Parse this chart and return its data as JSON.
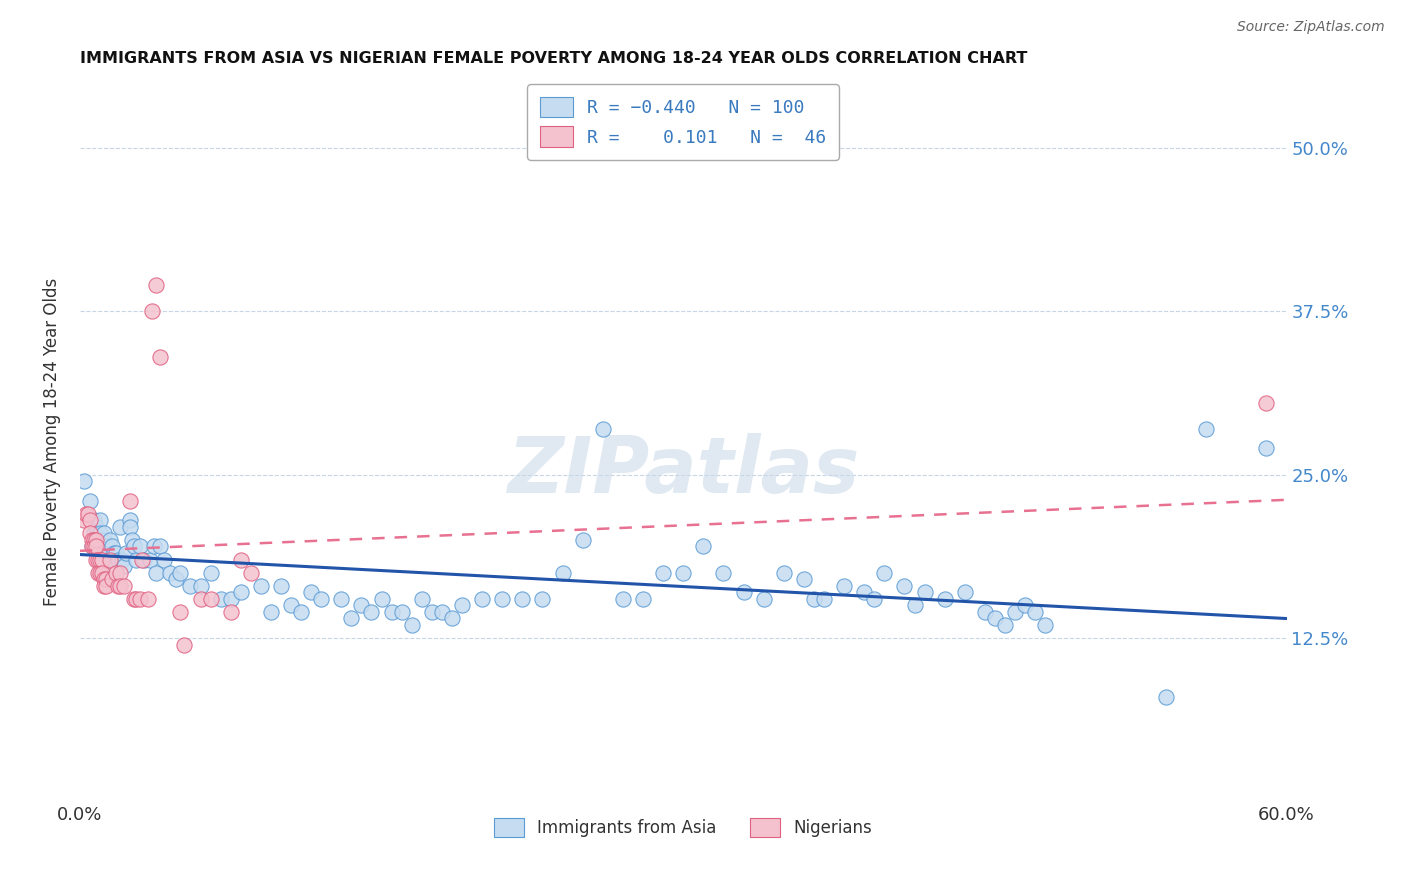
{
  "title": "IMMIGRANTS FROM ASIA VS NIGERIAN FEMALE POVERTY AMONG 18-24 YEAR OLDS CORRELATION CHART",
  "source": "Source: ZipAtlas.com",
  "ylabel": "Female Poverty Among 18-24 Year Olds",
  "xlim": [
    0.0,
    0.6
  ],
  "ylim": [
    0.0,
    0.55
  ],
  "yticks": [
    0.125,
    0.25,
    0.375,
    0.5
  ],
  "ytick_labels": [
    "12.5%",
    "25.0%",
    "37.5%",
    "50.0%"
  ],
  "xticks": [
    0.0,
    0.1,
    0.2,
    0.3,
    0.4,
    0.5,
    0.6
  ],
  "watermark": "ZIPatlas",
  "asia_color": "#c6dcf0",
  "asia_edge": "#5b9bd5",
  "nigeria_color": "#f4c2cf",
  "nigeria_edge": "#e06080",
  "asia_line_color": "#2255aa",
  "nigeria_line_color": "#e87090",
  "asia_R": -0.44,
  "nigeria_R": 0.101,
  "asia_points": [
    [
      0.002,
      0.245
    ],
    [
      0.005,
      0.23
    ],
    [
      0.006,
      0.195
    ],
    [
      0.007,
      0.215
    ],
    [
      0.007,
      0.205
    ],
    [
      0.008,
      0.21
    ],
    [
      0.008,
      0.2
    ],
    [
      0.009,
      0.195
    ],
    [
      0.01,
      0.215
    ],
    [
      0.01,
      0.205
    ],
    [
      0.011,
      0.2
    ],
    [
      0.011,
      0.185
    ],
    [
      0.012,
      0.205
    ],
    [
      0.013,
      0.195
    ],
    [
      0.014,
      0.185
    ],
    [
      0.015,
      0.2
    ],
    [
      0.016,
      0.195
    ],
    [
      0.017,
      0.19
    ],
    [
      0.018,
      0.19
    ],
    [
      0.019,
      0.185
    ],
    [
      0.02,
      0.21
    ],
    [
      0.021,
      0.185
    ],
    [
      0.022,
      0.18
    ],
    [
      0.023,
      0.19
    ],
    [
      0.025,
      0.215
    ],
    [
      0.025,
      0.21
    ],
    [
      0.026,
      0.2
    ],
    [
      0.027,
      0.195
    ],
    [
      0.028,
      0.185
    ],
    [
      0.03,
      0.195
    ],
    [
      0.032,
      0.185
    ],
    [
      0.035,
      0.185
    ],
    [
      0.037,
      0.195
    ],
    [
      0.038,
      0.175
    ],
    [
      0.04,
      0.195
    ],
    [
      0.042,
      0.185
    ],
    [
      0.045,
      0.175
    ],
    [
      0.048,
      0.17
    ],
    [
      0.05,
      0.175
    ],
    [
      0.055,
      0.165
    ],
    [
      0.06,
      0.165
    ],
    [
      0.065,
      0.175
    ],
    [
      0.07,
      0.155
    ],
    [
      0.075,
      0.155
    ],
    [
      0.08,
      0.16
    ],
    [
      0.09,
      0.165
    ],
    [
      0.095,
      0.145
    ],
    [
      0.1,
      0.165
    ],
    [
      0.105,
      0.15
    ],
    [
      0.11,
      0.145
    ],
    [
      0.115,
      0.16
    ],
    [
      0.12,
      0.155
    ],
    [
      0.13,
      0.155
    ],
    [
      0.135,
      0.14
    ],
    [
      0.14,
      0.15
    ],
    [
      0.145,
      0.145
    ],
    [
      0.15,
      0.155
    ],
    [
      0.155,
      0.145
    ],
    [
      0.16,
      0.145
    ],
    [
      0.165,
      0.135
    ],
    [
      0.17,
      0.155
    ],
    [
      0.175,
      0.145
    ],
    [
      0.18,
      0.145
    ],
    [
      0.185,
      0.14
    ],
    [
      0.19,
      0.15
    ],
    [
      0.2,
      0.155
    ],
    [
      0.21,
      0.155
    ],
    [
      0.22,
      0.155
    ],
    [
      0.23,
      0.155
    ],
    [
      0.24,
      0.175
    ],
    [
      0.25,
      0.2
    ],
    [
      0.26,
      0.285
    ],
    [
      0.27,
      0.155
    ],
    [
      0.28,
      0.155
    ],
    [
      0.29,
      0.175
    ],
    [
      0.3,
      0.175
    ],
    [
      0.31,
      0.195
    ],
    [
      0.32,
      0.175
    ],
    [
      0.33,
      0.16
    ],
    [
      0.34,
      0.155
    ],
    [
      0.35,
      0.175
    ],
    [
      0.36,
      0.17
    ],
    [
      0.365,
      0.155
    ],
    [
      0.37,
      0.155
    ],
    [
      0.38,
      0.165
    ],
    [
      0.39,
      0.16
    ],
    [
      0.395,
      0.155
    ],
    [
      0.4,
      0.175
    ],
    [
      0.41,
      0.165
    ],
    [
      0.415,
      0.15
    ],
    [
      0.42,
      0.16
    ],
    [
      0.43,
      0.155
    ],
    [
      0.44,
      0.16
    ],
    [
      0.45,
      0.145
    ],
    [
      0.455,
      0.14
    ],
    [
      0.46,
      0.135
    ],
    [
      0.465,
      0.145
    ],
    [
      0.47,
      0.15
    ],
    [
      0.475,
      0.145
    ],
    [
      0.48,
      0.135
    ],
    [
      0.54,
      0.08
    ],
    [
      0.56,
      0.285
    ],
    [
      0.59,
      0.27
    ]
  ],
  "nigeria_points": [
    [
      0.002,
      0.215
    ],
    [
      0.003,
      0.22
    ],
    [
      0.004,
      0.22
    ],
    [
      0.005,
      0.215
    ],
    [
      0.005,
      0.205
    ],
    [
      0.006,
      0.2
    ],
    [
      0.006,
      0.195
    ],
    [
      0.007,
      0.2
    ],
    [
      0.007,
      0.195
    ],
    [
      0.008,
      0.2
    ],
    [
      0.008,
      0.195
    ],
    [
      0.008,
      0.185
    ],
    [
      0.009,
      0.185
    ],
    [
      0.009,
      0.175
    ],
    [
      0.01,
      0.185
    ],
    [
      0.01,
      0.175
    ],
    [
      0.011,
      0.185
    ],
    [
      0.011,
      0.175
    ],
    [
      0.012,
      0.17
    ],
    [
      0.012,
      0.165
    ],
    [
      0.013,
      0.17
    ],
    [
      0.013,
      0.165
    ],
    [
      0.015,
      0.185
    ],
    [
      0.016,
      0.17
    ],
    [
      0.018,
      0.175
    ],
    [
      0.019,
      0.165
    ],
    [
      0.02,
      0.175
    ],
    [
      0.02,
      0.165
    ],
    [
      0.022,
      0.165
    ],
    [
      0.025,
      0.23
    ],
    [
      0.027,
      0.155
    ],
    [
      0.028,
      0.155
    ],
    [
      0.03,
      0.155
    ],
    [
      0.031,
      0.185
    ],
    [
      0.034,
      0.155
    ],
    [
      0.036,
      0.375
    ],
    [
      0.038,
      0.395
    ],
    [
      0.04,
      0.34
    ],
    [
      0.05,
      0.145
    ],
    [
      0.052,
      0.12
    ],
    [
      0.06,
      0.155
    ],
    [
      0.065,
      0.155
    ],
    [
      0.075,
      0.145
    ],
    [
      0.08,
      0.185
    ],
    [
      0.085,
      0.175
    ],
    [
      0.59,
      0.305
    ]
  ]
}
